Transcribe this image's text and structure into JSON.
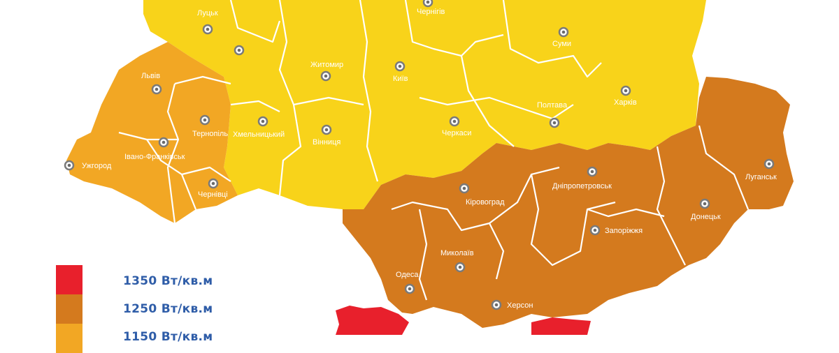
{
  "colors": {
    "zone_1350": "#e8202c",
    "zone_1250": "#d47a1e",
    "zone_1150": "#f2a724",
    "zone_1050": "#f8d31a",
    "border": "#ffffff"
  },
  "cities": [
    {
      "id": "lutsk",
      "label": "Луцьк"
    },
    {
      "id": "rivne",
      "label": ""
    },
    {
      "id": "chernihiv",
      "label": "Чернігів"
    },
    {
      "id": "sumy",
      "label": "Суми"
    },
    {
      "id": "zhytomyr",
      "label": "Житомир"
    },
    {
      "id": "kyiv",
      "label": "Київ"
    },
    {
      "id": "lviv",
      "label": "Львів"
    },
    {
      "id": "ternopil",
      "label": "Тернопіль"
    },
    {
      "id": "khmelnytskyi",
      "label": "Хмельницький"
    },
    {
      "id": "kharkiv",
      "label": "Харків"
    },
    {
      "id": "poltava",
      "label": "Полтава"
    },
    {
      "id": "cherkasy",
      "label": "Черкаси"
    },
    {
      "id": "vinnytsia",
      "label": "Вінниця"
    },
    {
      "id": "ivano-frankivsk",
      "label": "Івано-Франківськ"
    },
    {
      "id": "uzhhorod",
      "label": "Ужгород"
    },
    {
      "id": "chernivtsi",
      "label": "Чернівці"
    },
    {
      "id": "luhansk",
      "label": "Луганськ"
    },
    {
      "id": "dnipropetrovsk",
      "label": "Дніпропетровськ"
    },
    {
      "id": "kirovohrad",
      "label": "Кіровоград"
    },
    {
      "id": "donetsk",
      "label": "Донецьк"
    },
    {
      "id": "zaporizhzhia",
      "label": "Запоріжжя"
    },
    {
      "id": "mykolaiv",
      "label": "Миколаїв"
    },
    {
      "id": "odesa",
      "label": "Одеса"
    },
    {
      "id": "kherson",
      "label": "Херсон"
    }
  ],
  "legend": [
    {
      "label": "1350 Вт/кв.м",
      "color": "#e8202c"
    },
    {
      "label": "1250 Вт/кв.м",
      "color": "#d47a1e"
    },
    {
      "label": "1150 Вт/кв.м",
      "color": "#f2a724"
    }
  ]
}
